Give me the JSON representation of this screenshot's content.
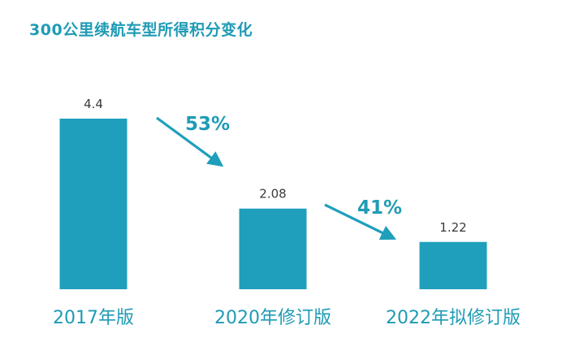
{
  "title": "300公里续航车型所得积分变化",
  "colors": {
    "bar": "#1f9fbc",
    "text_accent": "#1f9bb5",
    "value_text": "#3a3a3a"
  },
  "chart_data": {
    "type": "bar",
    "title": "300公里续航车型所得积分变化",
    "categories": [
      "2017年版",
      "2020年修订版",
      "2022年拟修订版"
    ],
    "values": [
      4.4,
      2.08,
      1.22
    ],
    "value_labels": [
      "4.4",
      "2.08",
      "1.22"
    ],
    "xlabel": "",
    "ylabel": "",
    "ylim": [
      0,
      5.0
    ],
    "grid": false,
    "legend": "none",
    "annotations": [
      {
        "from": 0,
        "to": 1,
        "text": "53%"
      },
      {
        "from": 1,
        "to": 2,
        "text": "41%"
      }
    ]
  }
}
